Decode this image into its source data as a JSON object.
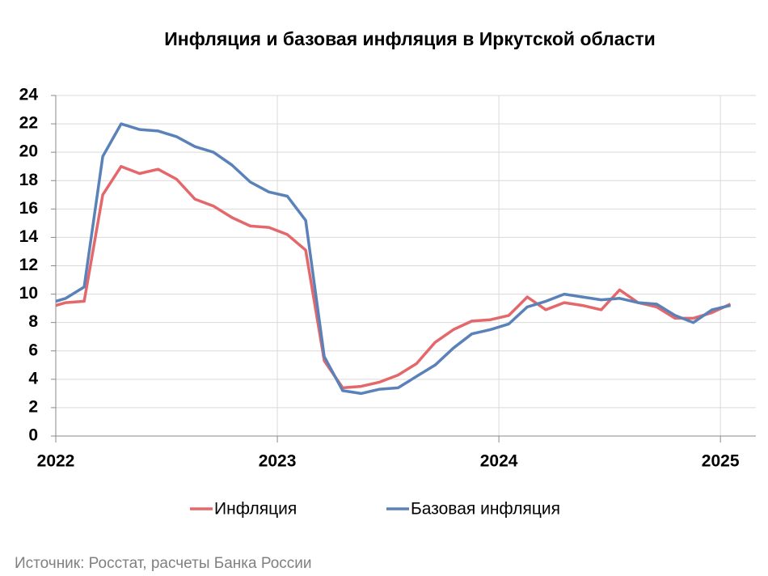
{
  "chart_data": {
    "type": "line",
    "title": "Инфляция и базовая инфляция в Иркутской области",
    "source": "Источник: Росстат, расчеты Банка России",
    "x": [
      2022,
      2022.045,
      2022.128,
      2022.212,
      2022.295,
      2022.378,
      2022.462,
      2022.545,
      2022.628,
      2022.712,
      2022.795,
      2022.878,
      2022.962,
      2023.045,
      2023.128,
      2023.212,
      2023.295,
      2023.378,
      2023.462,
      2023.545,
      2023.628,
      2023.712,
      2023.795,
      2023.878,
      2023.962,
      2024.045,
      2024.128,
      2024.212,
      2024.295,
      2024.378,
      2024.462,
      2024.545,
      2024.628,
      2024.712,
      2024.795,
      2024.878,
      2024.962,
      2025.045
    ],
    "series": [
      {
        "name": "Инфляция",
        "color": "#e4676b",
        "values": [
          9.2,
          9.4,
          9.5,
          17.0,
          19.0,
          18.5,
          18.8,
          18.1,
          16.7,
          16.2,
          15.4,
          14.8,
          14.7,
          14.2,
          13.1,
          5.3,
          3.4,
          3.5,
          3.8,
          4.3,
          5.1,
          6.6,
          7.5,
          8.1,
          8.2,
          8.5,
          9.8,
          8.9,
          9.4,
          9.2,
          8.9,
          10.3,
          9.4,
          9.1,
          8.3,
          8.3,
          8.7,
          9.3
        ]
      },
      {
        "name": "Базовая инфляция",
        "color": "#5a82b8",
        "values": [
          9.5,
          9.7,
          10.5,
          19.7,
          22.0,
          21.6,
          21.5,
          21.1,
          20.4,
          20.0,
          19.1,
          17.9,
          17.2,
          16.9,
          15.2,
          5.6,
          3.2,
          3.0,
          3.3,
          3.4,
          4.2,
          5.0,
          6.2,
          7.2,
          7.5,
          7.9,
          9.1,
          9.5,
          10.0,
          9.8,
          9.6,
          9.7,
          9.4,
          9.3,
          8.5,
          8.0,
          8.9,
          9.2
        ]
      }
    ],
    "xlim": [
      2022,
      2025.16
    ],
    "xticks": [
      2022,
      2023,
      2024,
      2025
    ],
    "ylim": [
      0,
      24
    ],
    "yticks": [
      0,
      2,
      4,
      6,
      8,
      10,
      12,
      14,
      16,
      18,
      20,
      22,
      24
    ],
    "grid": true,
    "legend": "bottom"
  }
}
